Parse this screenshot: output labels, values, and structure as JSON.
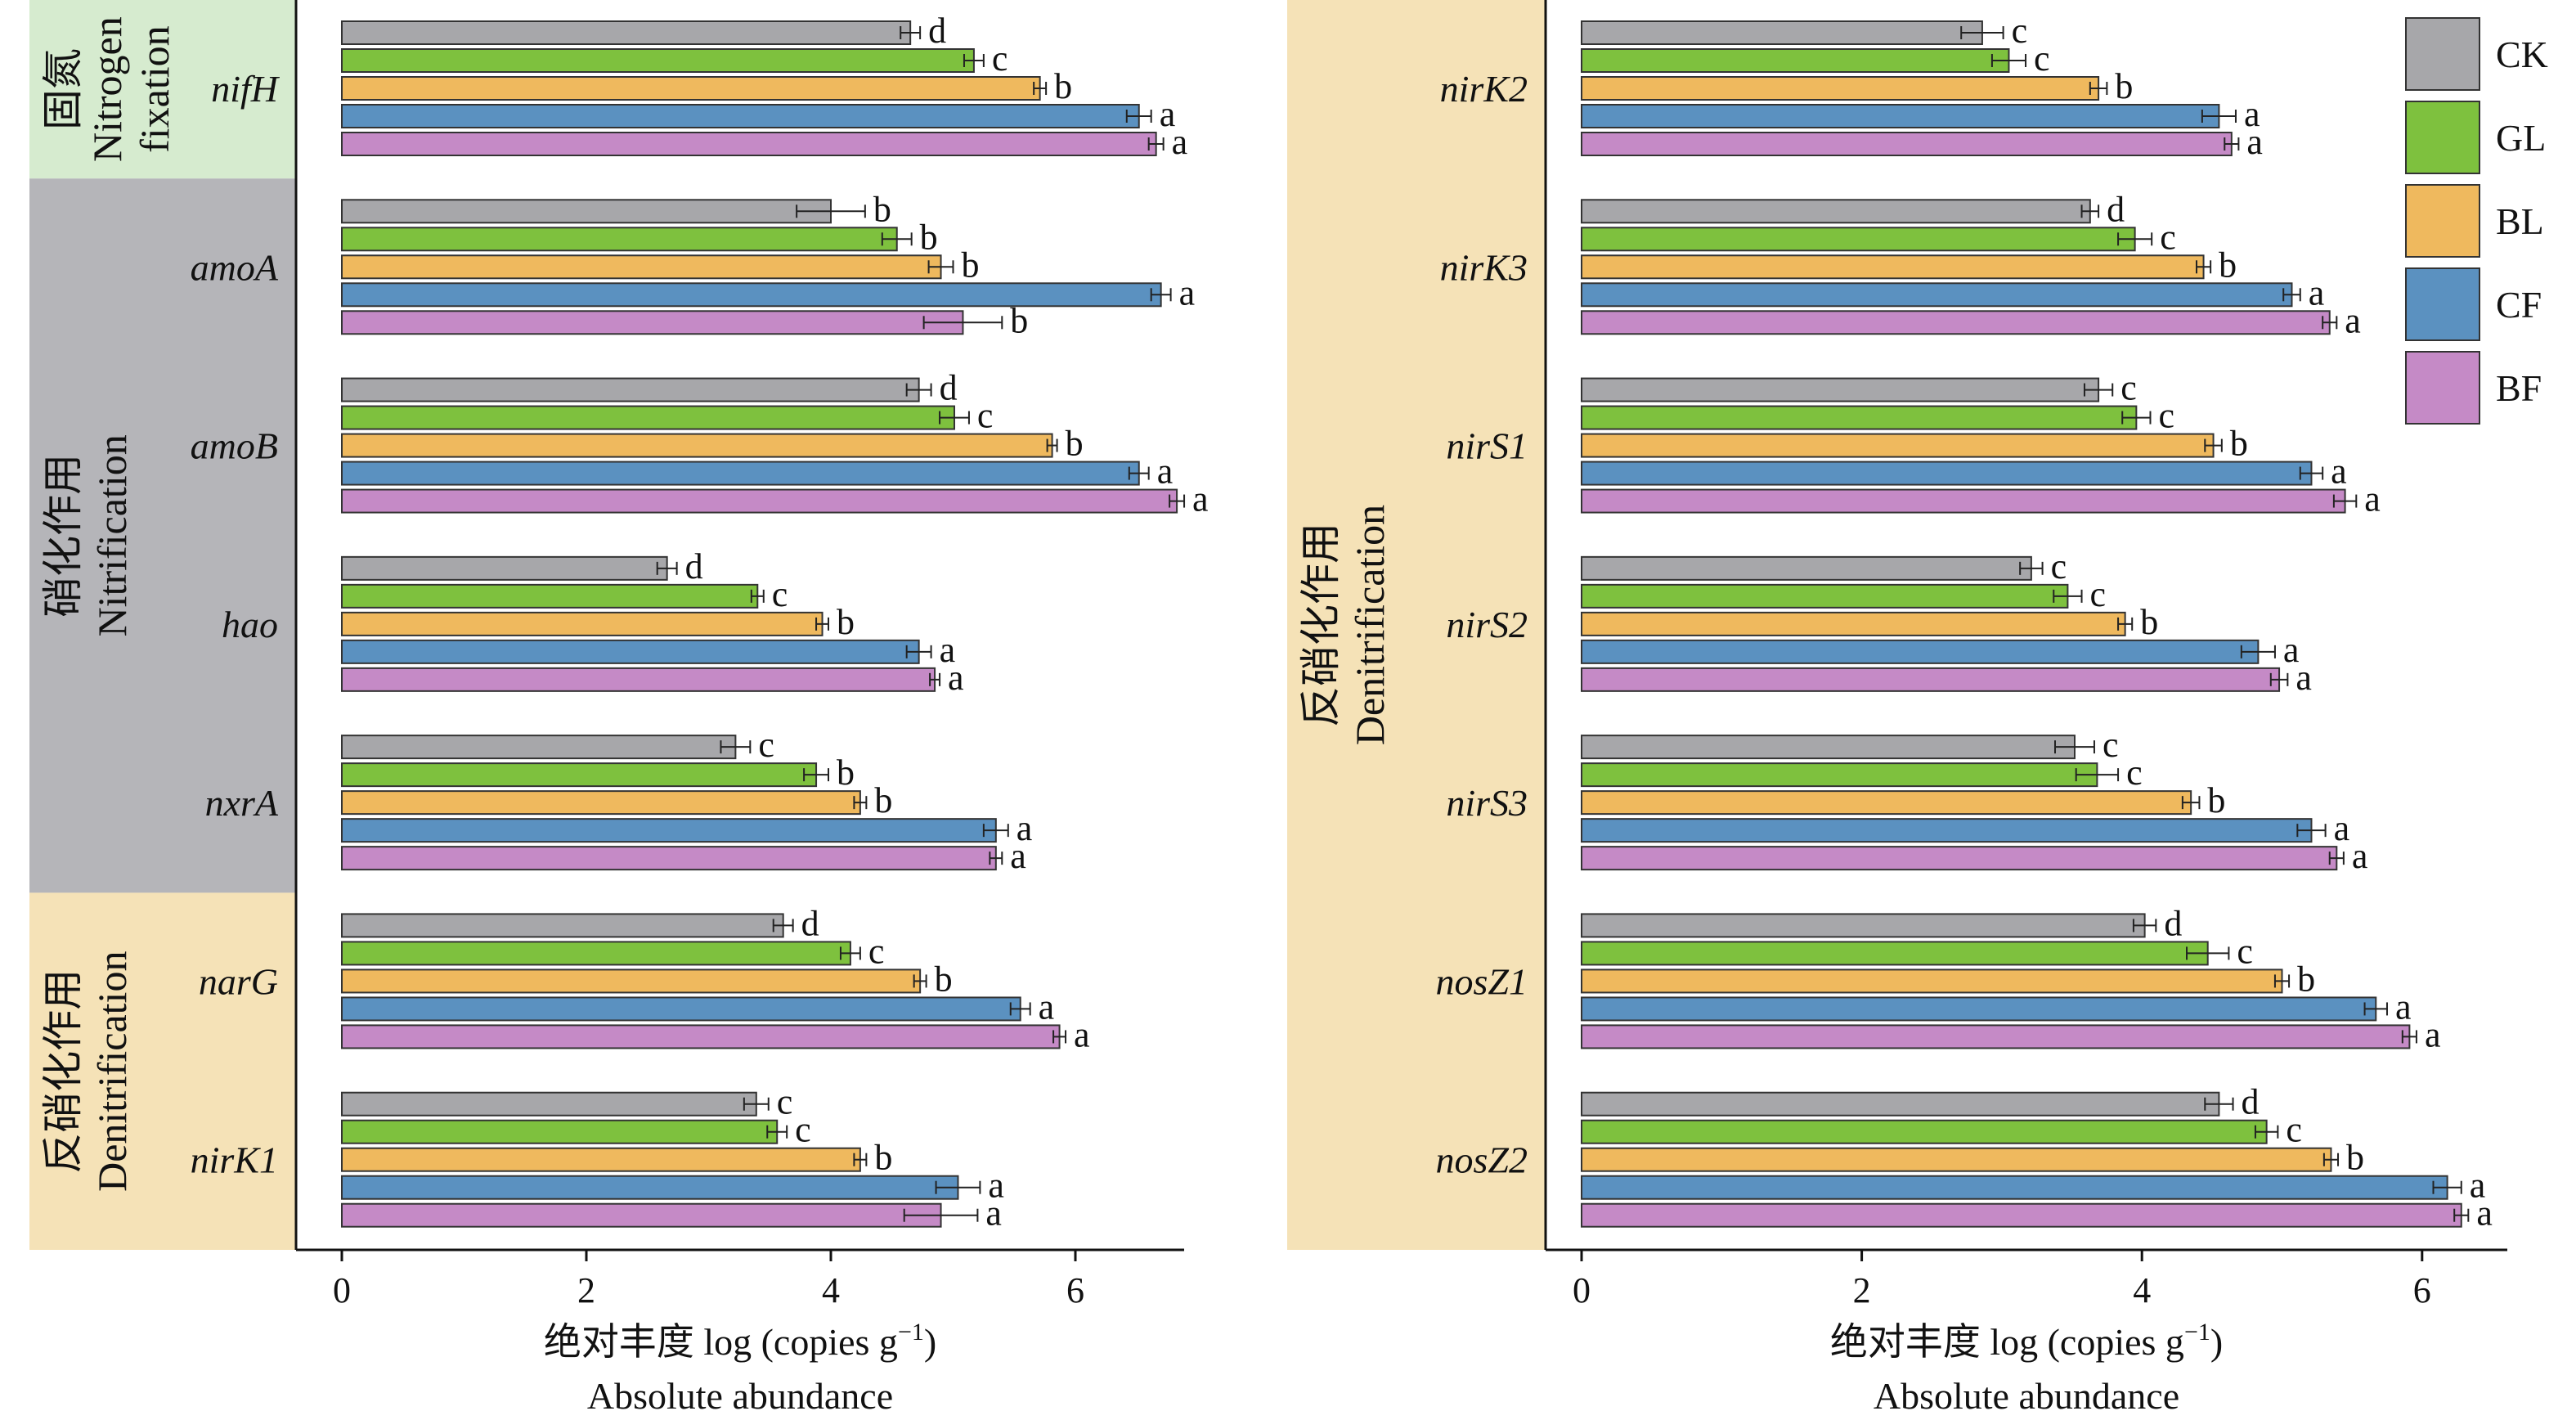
{
  "chart_data": [
    {
      "type": "bar",
      "orientation": "horizontal",
      "categories": [
        "nifH",
        "amoA",
        "amoB",
        "hao",
        "nxrA",
        "narG",
        "nirK1"
      ],
      "series": [
        {
          "name": "CK",
          "color": "#a7a7aa",
          "values": [
            4.65,
            4.0,
            4.72,
            2.66,
            3.22,
            3.61,
            3.39
          ],
          "errors": [
            0.08,
            0.28,
            0.1,
            0.08,
            0.12,
            0.08,
            0.1
          ],
          "labels": [
            "d",
            "b",
            "d",
            "d",
            "c",
            "d",
            "c"
          ]
        },
        {
          "name": "GL",
          "color": "#7ec13e",
          "values": [
            5.17,
            4.54,
            5.01,
            3.4,
            3.88,
            4.16,
            3.56
          ],
          "errors": [
            0.08,
            0.12,
            0.12,
            0.05,
            0.1,
            0.08,
            0.08
          ],
          "labels": [
            "c",
            "b",
            "c",
            "c",
            "b",
            "c",
            "c"
          ]
        },
        {
          "name": "BL",
          "color": "#efb95e",
          "values": [
            5.71,
            4.9,
            5.81,
            3.93,
            4.24,
            4.73,
            4.24
          ],
          "errors": [
            0.05,
            0.1,
            0.04,
            0.05,
            0.05,
            0.05,
            0.05
          ],
          "labels": [
            "b",
            "b",
            "b",
            "b",
            "b",
            "b",
            "b"
          ]
        },
        {
          "name": "CF",
          "color": "#5b91c0",
          "values": [
            6.52,
            6.7,
            6.52,
            4.72,
            5.35,
            5.55,
            5.04
          ],
          "errors": [
            0.1,
            0.08,
            0.08,
            0.1,
            0.1,
            0.08,
            0.18
          ],
          "labels": [
            "a",
            "a",
            "a",
            "a",
            "a",
            "a",
            "a"
          ]
        },
        {
          "name": "BF",
          "color": "#c58ac6",
          "values": [
            6.66,
            5.08,
            6.83,
            4.85,
            5.35,
            5.87,
            4.9
          ],
          "errors": [
            0.06,
            0.32,
            0.06,
            0.04,
            0.05,
            0.05,
            0.3
          ],
          "labels": [
            "a",
            "b",
            "a",
            "a",
            "a",
            "a",
            "a"
          ]
        }
      ],
      "xlim": [
        0,
        6.85
      ],
      "xticks": [
        0,
        2,
        4,
        6
      ],
      "xlabel_cn": "绝对丰度 log (copies g",
      "xlabel_sup": "−1",
      "xlabel_close": ")",
      "xlabel_en": "Absolute abundance",
      "groups": [
        {
          "name_cn": "固氮",
          "name_en": "Nitrogen fixation",
          "name_en_line1": "Nitrogen",
          "name_en_line2": "fixation",
          "color": "#d6ebcf",
          "rows": [
            0,
            0
          ]
        },
        {
          "name_cn": "硝化作用",
          "name_en": "Nitrification",
          "color": "#b5b5b9",
          "rows": [
            1,
            4
          ]
        },
        {
          "name_cn": "反硝化作用",
          "name_en": "Denitrification",
          "color": "#f5e2b7",
          "rows": [
            5,
            6
          ]
        }
      ]
    },
    {
      "type": "bar",
      "orientation": "horizontal",
      "categories": [
        "nirK2",
        "nirK3",
        "nirS1",
        "nirS2",
        "nirS3",
        "nosZ1",
        "nosZ2"
      ],
      "series": [
        {
          "name": "CK",
          "color": "#a7a7aa",
          "values": [
            2.86,
            3.63,
            3.69,
            3.21,
            3.52,
            4.02,
            4.55
          ],
          "errors": [
            0.15,
            0.06,
            0.1,
            0.08,
            0.14,
            0.08,
            0.1
          ],
          "labels": [
            "c",
            "d",
            "c",
            "c",
            "c",
            "d",
            "d"
          ]
        },
        {
          "name": "GL",
          "color": "#7ec13e",
          "values": [
            3.05,
            3.95,
            3.96,
            3.47,
            3.68,
            4.47,
            4.89
          ],
          "errors": [
            0.12,
            0.12,
            0.1,
            0.1,
            0.15,
            0.15,
            0.08
          ],
          "labels": [
            "c",
            "c",
            "c",
            "c",
            "c",
            "c",
            "c"
          ]
        },
        {
          "name": "BL",
          "color": "#efb95e",
          "values": [
            3.69,
            4.44,
            4.51,
            3.88,
            4.35,
            5.0,
            5.35
          ],
          "errors": [
            0.06,
            0.05,
            0.06,
            0.05,
            0.06,
            0.05,
            0.05
          ],
          "labels": [
            "b",
            "b",
            "b",
            "b",
            "b",
            "b",
            "b"
          ]
        },
        {
          "name": "CF",
          "color": "#5b91c0",
          "values": [
            4.55,
            5.07,
            5.21,
            4.83,
            5.21,
            5.67,
            6.18
          ],
          "errors": [
            0.12,
            0.06,
            0.08,
            0.12,
            0.1,
            0.08,
            0.1
          ],
          "labels": [
            "a",
            "a",
            "a",
            "a",
            "a",
            "a",
            "a"
          ]
        },
        {
          "name": "BF",
          "color": "#c58ac6",
          "values": [
            4.64,
            5.34,
            5.45,
            4.98,
            5.39,
            5.91,
            6.28
          ],
          "errors": [
            0.05,
            0.05,
            0.08,
            0.06,
            0.05,
            0.05,
            0.05
          ],
          "labels": [
            "a",
            "a",
            "a",
            "a",
            "a",
            "a",
            "a"
          ]
        }
      ],
      "xlim": [
        0,
        6.6
      ],
      "xticks": [
        0,
        2,
        4,
        6
      ],
      "xlabel_cn": "绝对丰度 log (copies g",
      "xlabel_sup": "−1",
      "xlabel_close": ")",
      "xlabel_en": "Absolute abundance",
      "groups": [
        {
          "name_cn": "反硝化作用",
          "name_en": "Denitrification",
          "color": "#f5e2b7",
          "rows": [
            0,
            6
          ]
        }
      ]
    }
  ],
  "legend": [
    {
      "name": "CK",
      "color": "#a7a7aa"
    },
    {
      "name": "GL",
      "color": "#7ec13e"
    },
    {
      "name": "BL",
      "color": "#efb95e"
    },
    {
      "name": "CF",
      "color": "#5b91c0"
    },
    {
      "name": "BF",
      "color": "#c58ac6"
    }
  ]
}
